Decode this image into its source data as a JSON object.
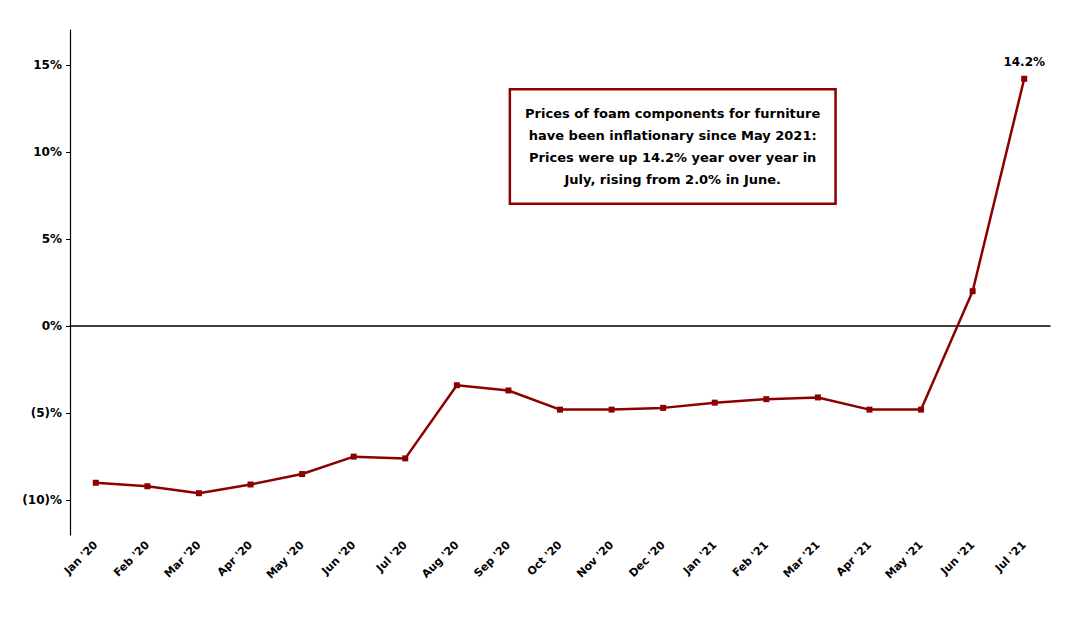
{
  "chart_data": {
    "type": "line",
    "categories": [
      "Jan '20",
      "Feb '20",
      "Mar '20",
      "Apr '20",
      "May '20",
      "Jun '20",
      "Jul '20",
      "Aug '20",
      "Sep '20",
      "Oct '20",
      "Nov '20",
      "Dec '20",
      "Jan '21",
      "Feb '21",
      "Mar '21",
      "Apr '21",
      "May '21",
      "Jun '21",
      "Jul '21"
    ],
    "values": [
      -9.0,
      -9.2,
      -9.6,
      -9.1,
      -8.5,
      -7.5,
      -7.6,
      -3.4,
      -3.7,
      -4.8,
      -4.8,
      -4.7,
      -4.4,
      -4.2,
      -4.1,
      -4.8,
      -4.8,
      2.0,
      14.2
    ],
    "color": "#8B0000",
    "marker": "square",
    "line_style": "solid",
    "ylim": [
      -12,
      17
    ],
    "yticks": [
      {
        "value": -10,
        "label": "(10)%"
      },
      {
        "value": -5,
        "label": "(5)%"
      },
      {
        "value": 0,
        "label": "0%"
      },
      {
        "value": 5,
        "label": "5%"
      },
      {
        "value": 10,
        "label": "10%"
      },
      {
        "value": 15,
        "label": "15%"
      }
    ],
    "grid": false,
    "annotations": [
      {
        "text": "14.2%",
        "x": "Jul '21",
        "y": 14.2
      },
      {
        "text": "Prices of foam components for furniture\nhave been inflationary since May 2021:\nPrices were up 14.2% year over year in\nJuly, rising from 2.0% in June.",
        "color": "#8B0000"
      }
    ]
  }
}
